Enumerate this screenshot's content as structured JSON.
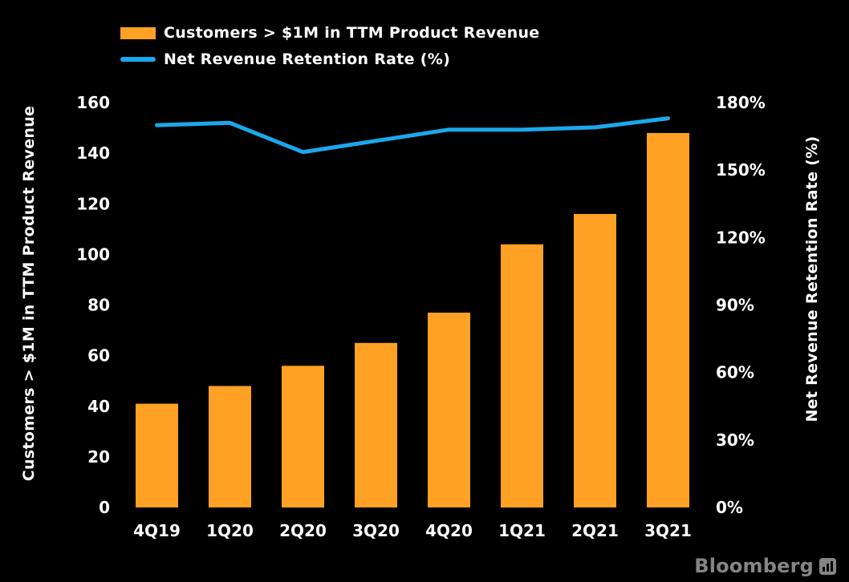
{
  "legend": {
    "items": [
      {
        "label": "Customers > $1M in TTM Product Revenue",
        "color": "#FFA124",
        "marker": "bar"
      },
      {
        "label": "Net Revenue Retention Rate (%)",
        "color": "#1BA8EC",
        "marker": "line"
      }
    ]
  },
  "chart_data": {
    "type": "bar+line",
    "categories": [
      "4Q19",
      "1Q20",
      "2Q20",
      "3Q20",
      "4Q20",
      "1Q21",
      "2Q21",
      "3Q21"
    ],
    "series": [
      {
        "name": "Customers > $1M in TTM Product Revenue",
        "type": "bar",
        "axis": "left",
        "color": "#FFA124",
        "values": [
          41,
          48,
          56,
          65,
          77,
          104,
          116,
          148
        ]
      },
      {
        "name": "Net Revenue Retention Rate (%)",
        "type": "line",
        "axis": "right",
        "color": "#1BA8EC",
        "values": [
          170,
          171,
          158,
          163,
          168,
          168,
          169,
          173
        ]
      }
    ],
    "left_axis": {
      "label": "Customers > $1M in TTM Product Revenue",
      "min": 0,
      "max": 160,
      "step": 20,
      "ticks": [
        "0",
        "20",
        "40",
        "60",
        "80",
        "100",
        "120",
        "140",
        "160"
      ]
    },
    "right_axis": {
      "label": "Net Revenue Retention Rate (%)",
      "min": 0,
      "max": 180,
      "step": 30,
      "ticks": [
        "0%",
        "30%",
        "60%",
        "90%",
        "120%",
        "150%",
        "180%"
      ]
    },
    "grid": false,
    "legend_position": "top-left",
    "background": "#000000",
    "text_color": "#FFFFFF"
  },
  "branding": {
    "logo_text": "Bloomberg"
  }
}
